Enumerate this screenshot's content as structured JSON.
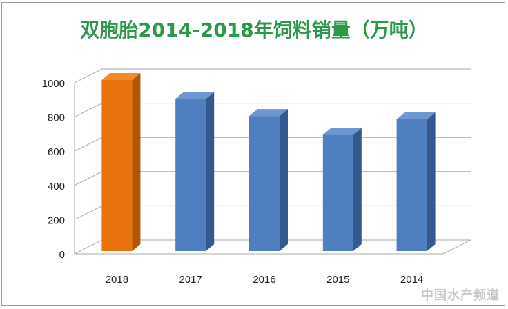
{
  "title": "双胞胎2014-2018年饲料销量（万吨）",
  "colors": {
    "title": "#2a9a48",
    "highlight_bar": "#e8720c",
    "bar": "#4f7fc0",
    "grid": "#a8a8a8"
  },
  "watermark_text": "中国水产频道",
  "chart_data": {
    "type": "bar",
    "style": "3d-column",
    "categories": [
      "2018",
      "2017",
      "2016",
      "2015",
      "2014"
    ],
    "values": [
      1000,
      890,
      790,
      680,
      770
    ],
    "highlight_index": 0,
    "title": "双胞胎2014-2018年饲料销量（万吨）",
    "xlabel": "",
    "ylabel": "",
    "ylim": [
      0,
      1000
    ],
    "yticks": [
      0,
      200,
      400,
      600,
      800,
      1000
    ],
    "grid": true,
    "legend": "none"
  }
}
